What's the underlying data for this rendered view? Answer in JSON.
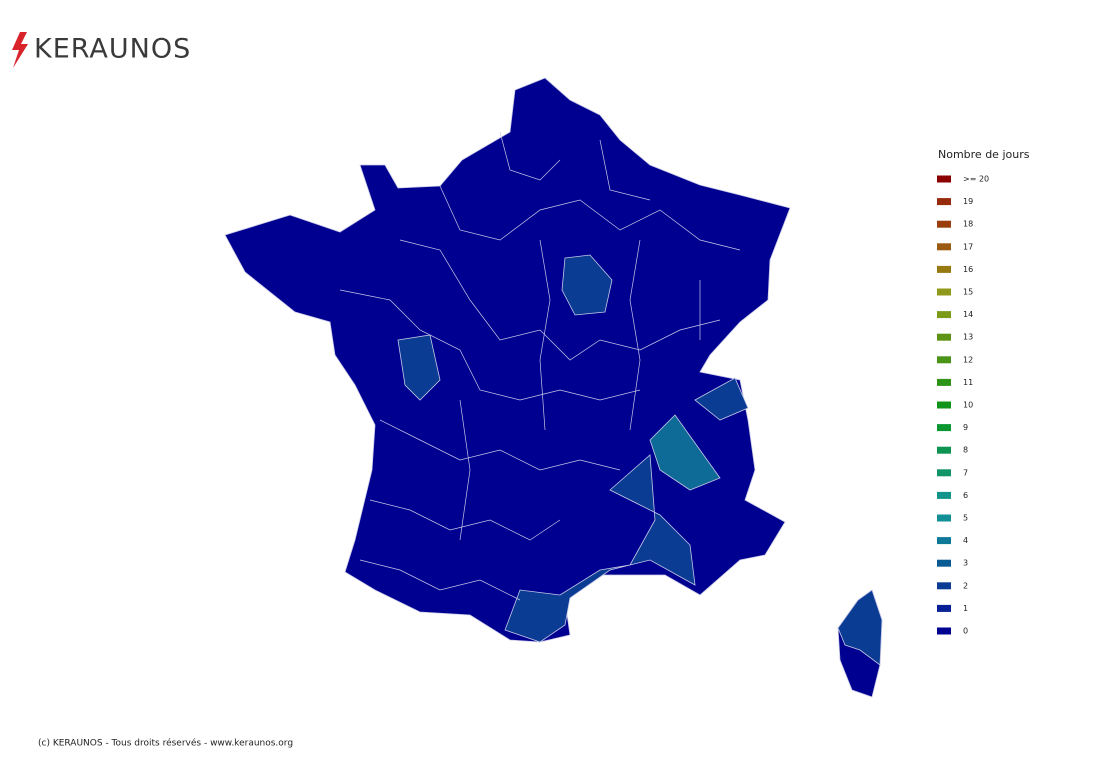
{
  "header": {
    "logo": "KERAUNOS"
  },
  "legend": {
    "title": "Nombre de jours",
    "items": [
      {
        "label": ">= 20",
        "color": "#8b0000"
      },
      {
        "label": 19,
        "color": "#962a0a"
      },
      {
        "label": 18,
        "color": "#9a3e0c"
      },
      {
        "label": 17,
        "color": "#9a5a10"
      },
      {
        "label": 16,
        "color": "#967a10"
      },
      {
        "label": 15,
        "color": "#909a1a"
      },
      {
        "label": 14,
        "color": "#7a9a18"
      },
      {
        "label": 13,
        "color": "#5e9416"
      },
      {
        "label": 12,
        "color": "#4a9418"
      },
      {
        "label": 11,
        "color": "#2e9418"
      },
      {
        "label": 10,
        "color": "#12941a"
      },
      {
        "label": 9,
        "color": "#0a9630"
      },
      {
        "label": 8,
        "color": "#0c9450"
      },
      {
        "label": 7,
        "color": "#119468"
      },
      {
        "label": 6,
        "color": "#12948a"
      },
      {
        "label": 5,
        "color": "#129096"
      },
      {
        "label": 4,
        "color": "#0e7896"
      },
      {
        "label": 3,
        "color": "#0a5a94"
      },
      {
        "label": 2,
        "color": "#0a3c94"
      },
      {
        "label": 1,
        "color": "#061e96"
      },
      {
        "label": 0,
        "color": "#000090"
      }
    ]
  },
  "footer": {
    "copyright": "(c) KERAUNOS - Tous droits réservés - www.keraunos.org"
  }
}
